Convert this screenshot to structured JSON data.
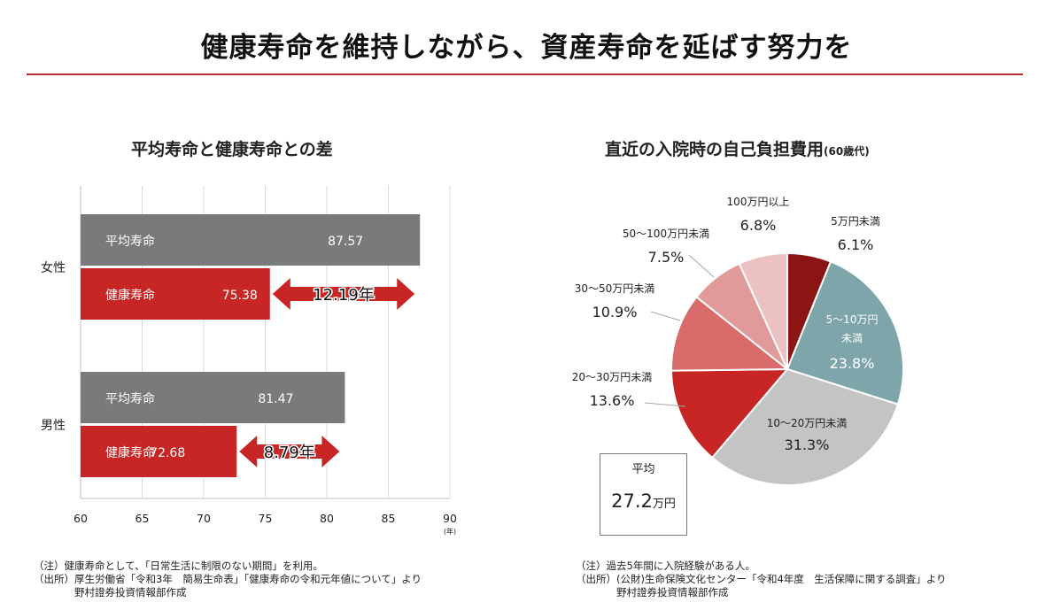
{
  "title": "健康寿命を維持しながら、資産寿命を延ばす努力を",
  "left": {
    "subtitle": "平均寿命と健康寿命との差",
    "notes": "（注）健康寿命として、「日常生活に制限のない期間」を利用。\n（出所）厚生労働省「令和3年　簡易生命表」「健康寿命の令和元年値について」より\n　　　　野村證券投資情報部作成"
  },
  "right": {
    "subtitle": "直近の入院時の自己負担費用",
    "subtitle_small": "(60歳代)",
    "avg_label": "平均",
    "avg_value": "27.2",
    "avg_unit": "万円",
    "notes": "（注）過去5年間に入院経験がある人。\n（出所）(公財)生命保険文化センター「令和4年度　生活保障に関する調査」より\n　　　　野村證券投資情報部作成"
  },
  "chart_data": [
    {
      "type": "bar",
      "orientation": "horizontal",
      "x_ticks": [
        "60",
        "65",
        "70",
        "75",
        "80",
        "85",
        "90"
      ],
      "x_unit": "(年)",
      "xlim": [
        60,
        90
      ],
      "groups": [
        {
          "label": "女性",
          "bars": [
            {
              "name": "平均寿命",
              "value": 87.57,
              "color": "#7a7a7a"
            },
            {
              "name": "健康寿命",
              "value": 75.38,
              "color": "#c82525"
            }
          ],
          "gap_label": "12.19年"
        },
        {
          "label": "男性",
          "bars": [
            {
              "name": "平均寿命",
              "value": 81.47,
              "color": "#7a7a7a"
            },
            {
              "name": "健康寿命",
              "value": 72.68,
              "color": "#c82525"
            }
          ],
          "gap_label": "8.79年"
        }
      ]
    },
    {
      "type": "pie",
      "slices": [
        {
          "label": "5万円未満",
          "value": 6.1,
          "value_label": "6.1%",
          "color": "#8b1414"
        },
        {
          "label": "5～10万円未満",
          "value": 23.8,
          "value_label": "23.8%",
          "color": "#7ea6aa"
        },
        {
          "label": "10～20万円未満",
          "value": 31.3,
          "value_label": "31.3%",
          "color": "#c4c4c4"
        },
        {
          "label": "20～30万円未満",
          "value": 13.6,
          "value_label": "13.6%",
          "color": "#c82525"
        },
        {
          "label": "30～50万円未満",
          "value": 10.9,
          "value_label": "10.9%",
          "color": "#d96b6b"
        },
        {
          "label": "50～100万円未満",
          "value": 7.5,
          "value_label": "7.5%",
          "color": "#e19a9a"
        },
        {
          "label": "100万円以上",
          "value": 6.8,
          "value_label": "6.8%",
          "color": "#ebc1c1"
        }
      ]
    }
  ]
}
